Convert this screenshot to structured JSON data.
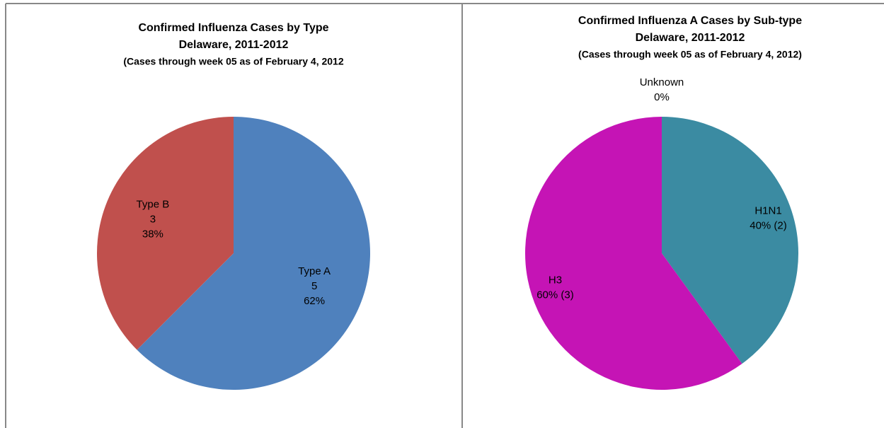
{
  "chart_data": [
    {
      "type": "pie",
      "title": "Confirmed Influenza Cases by Type",
      "subtitle": "Delaware, 2011-2012",
      "note": "(Cases through week 05 as of February 4, 2012",
      "categories": [
        "Type A",
        "Type B"
      ],
      "values": [
        5,
        3
      ],
      "percent_labels": [
        "62%",
        "38%"
      ],
      "colors": [
        "#4f81bd",
        "#c0504d"
      ]
    },
    {
      "type": "pie",
      "title": "Confirmed Influenza  A Cases by Sub-type",
      "subtitle": "Delaware, 2011-2012",
      "note": "(Cases through week 05 as of February 4, 2012)",
      "categories": [
        "H1N1",
        "H3",
        "Unknown"
      ],
      "values": [
        2,
        3,
        0
      ],
      "value_labels": [
        "40% (2)",
        "60% (3)",
        "0%"
      ],
      "colors": [
        "#3b8ba2",
        "#c514b5",
        "#9bbb59"
      ]
    }
  ]
}
